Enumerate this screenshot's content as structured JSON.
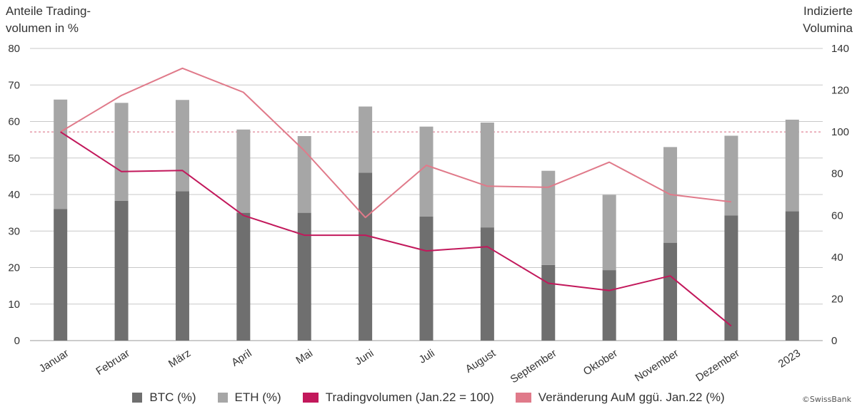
{
  "chart_data": {
    "type": "bar",
    "left_axis_title": "Anteile Trading-\nvolumen in %",
    "right_axis_title": "Indizierte\nVolumina",
    "categories": [
      "Januar",
      "Februar",
      "März",
      "April",
      "Mai",
      "Juni",
      "Juli",
      "August",
      "September",
      "Oktober",
      "November",
      "Dezember",
      "2023"
    ],
    "ylim": [
      0,
      80
    ],
    "yticks": [
      0,
      10,
      20,
      30,
      40,
      50,
      60,
      70,
      80
    ],
    "y2lim": [
      0,
      140
    ],
    "y2ticks": [
      0,
      20,
      40,
      60,
      80,
      100,
      120,
      140
    ],
    "reference_line_y2": 100,
    "series": [
      {
        "name": "BTC (%)",
        "type": "bar-stacked",
        "axis": "left",
        "color": "#6f6f6f",
        "values": [
          36,
          38.3,
          40.9,
          35,
          35,
          46,
          34,
          31,
          20.7,
          19.3,
          26.8,
          34.3,
          35.4
        ]
      },
      {
        "name": "ETH (%)",
        "type": "bar-stacked",
        "axis": "left",
        "color": "#a6a6a6",
        "values": [
          30,
          26.8,
          25,
          22.8,
          21,
          18.1,
          24.6,
          28.7,
          25.8,
          20.6,
          26.2,
          21.8,
          25.1
        ]
      },
      {
        "name": "Tradingvolumen (Jan.22 = 100)",
        "type": "line",
        "axis": "right",
        "color": "#c2185b",
        "values": [
          100,
          81,
          81.5,
          60,
          50.5,
          50.5,
          43,
          45,
          27.5,
          24,
          31,
          7,
          null
        ]
      },
      {
        "name": "Veränderung AuM ggü. Jan.22 (%)",
        "type": "line",
        "axis": "right",
        "color": "#e07a8a",
        "values": [
          100,
          117.5,
          130.5,
          119,
          91,
          59,
          84,
          74,
          73.5,
          85.5,
          70,
          66.5,
          null
        ]
      }
    ],
    "legend_position": "bottom",
    "grid": true
  },
  "watermark": "©SwissBank"
}
